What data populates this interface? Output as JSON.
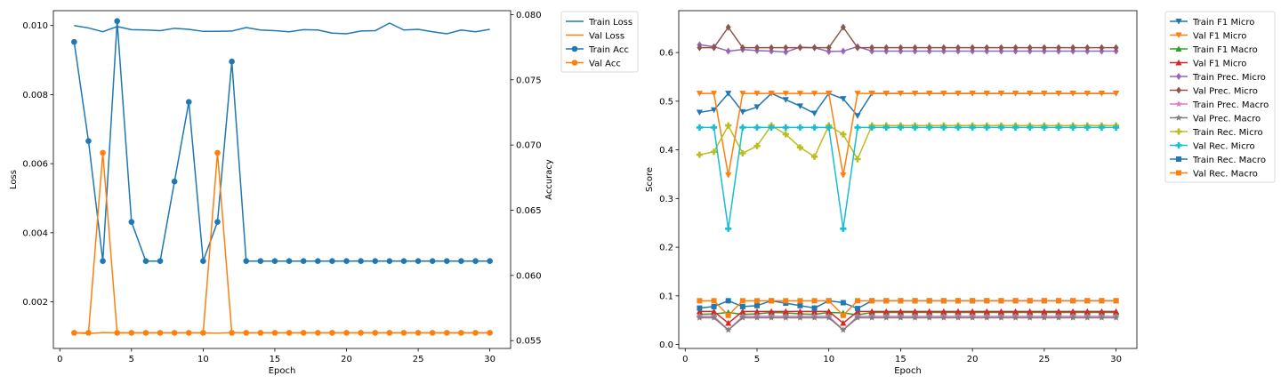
{
  "chart_data": [
    {
      "type": "line",
      "xlabel": "Epoch",
      "ylabel": "Loss",
      "y2label": "Accuracy",
      "xlim": [
        -0.45,
        31.45
      ],
      "ylim": [
        0.00065,
        0.01043
      ],
      "y2lim": [
        0.0544,
        0.0803
      ],
      "xticks": [
        0,
        5,
        10,
        15,
        20,
        25,
        30
      ],
      "yticks": [
        0.002,
        0.004,
        0.006,
        0.008,
        0.01
      ],
      "ytick_labels": [
        "0.002",
        "0.004",
        "0.006",
        "0.008",
        "0.010"
      ],
      "y2ticks": [
        0.055,
        0.06,
        0.065,
        0.07,
        0.075,
        0.08
      ],
      "y2tick_labels": [
        "0.055",
        "0.060",
        "0.065",
        "0.070",
        "0.075",
        "0.080"
      ],
      "legend_position": "outside top-right",
      "x": [
        1,
        2,
        3,
        4,
        5,
        6,
        7,
        8,
        9,
        10,
        11,
        12,
        13,
        14,
        15,
        16,
        17,
        18,
        19,
        20,
        21,
        22,
        23,
        24,
        25,
        26,
        27,
        28,
        29,
        30
      ],
      "series": [
        {
          "name": "Train Loss",
          "axis": "left",
          "color": "#1f77b4",
          "marker": "none",
          "values": [
            0.01,
            0.00993,
            0.00982,
            0.00997,
            0.00988,
            0.00987,
            0.00985,
            0.00992,
            0.00989,
            0.00983,
            0.00983,
            0.00984,
            0.00994,
            0.00987,
            0.00985,
            0.00982,
            0.00988,
            0.00987,
            0.00978,
            0.00976,
            0.00984,
            0.00985,
            0.01007,
            0.00987,
            0.00989,
            0.00982,
            0.00976,
            0.00987,
            0.00982,
            0.00989
          ]
        },
        {
          "name": "Val Loss",
          "axis": "left",
          "color": "#ff7f0e",
          "marker": "none",
          "values": [
            0.0011,
            0.00108,
            0.00111,
            0.0011,
            0.0011,
            0.0011,
            0.0011,
            0.0011,
            0.0011,
            0.0011,
            0.00109,
            0.00111,
            0.0011,
            0.0011,
            0.0011,
            0.0011,
            0.0011,
            0.0011,
            0.0011,
            0.0011,
            0.0011,
            0.0011,
            0.0011,
            0.0011,
            0.0011,
            0.0011,
            0.0011,
            0.0011,
            0.0011,
            0.0011
          ]
        },
        {
          "name": "Train Acc",
          "axis": "right",
          "color": "#1f77b4",
          "marker": "circle",
          "values": [
            0.0779,
            0.0703,
            0.0611,
            0.0795,
            0.0641,
            0.0611,
            0.0611,
            0.0672,
            0.0733,
            0.0611,
            0.0641,
            0.0764,
            0.0611,
            0.0611,
            0.0611,
            0.0611,
            0.0611,
            0.0611,
            0.0611,
            0.0611,
            0.0611,
            0.0611,
            0.0611,
            0.0611,
            0.0611,
            0.0611,
            0.0611,
            0.0611,
            0.0611,
            0.0611
          ]
        },
        {
          "name": "Val Acc",
          "axis": "right",
          "color": "#ff7f0e",
          "marker": "circle",
          "values": [
            0.0556,
            0.0556,
            0.0694,
            0.0556,
            0.0556,
            0.0556,
            0.0556,
            0.0556,
            0.0556,
            0.0556,
            0.0694,
            0.0556,
            0.0556,
            0.0556,
            0.0556,
            0.0556,
            0.0556,
            0.0556,
            0.0556,
            0.0556,
            0.0556,
            0.0556,
            0.0556,
            0.0556,
            0.0556,
            0.0556,
            0.0556,
            0.0556,
            0.0556,
            0.0556
          ]
        }
      ]
    },
    {
      "type": "line",
      "xlabel": "Epoch",
      "ylabel": "Score",
      "xlim": [
        -0.45,
        31.45
      ],
      "ylim": [
        -0.008,
        0.686
      ],
      "xticks": [
        0,
        5,
        10,
        15,
        20,
        25,
        30
      ],
      "yticks": [
        0.0,
        0.1,
        0.2,
        0.3,
        0.4,
        0.5,
        0.6
      ],
      "ytick_labels": [
        "0.0",
        "0.1",
        "0.2",
        "0.3",
        "0.4",
        "0.5",
        "0.6"
      ],
      "legend_position": "outside top-right",
      "x": [
        1,
        2,
        3,
        4,
        5,
        6,
        7,
        8,
        9,
        10,
        11,
        12,
        13,
        14,
        15,
        16,
        17,
        18,
        19,
        20,
        21,
        22,
        23,
        24,
        25,
        26,
        27,
        28,
        29,
        30
      ],
      "series": [
        {
          "name": "Train F1 Micro",
          "color": "#1f77b4",
          "marker": "tri-down",
          "values": [
            0.477,
            0.482,
            0.516,
            0.478,
            0.488,
            0.516,
            0.503,
            0.49,
            0.475,
            0.516,
            0.505,
            0.47,
            0.516,
            0.516,
            0.516,
            0.516,
            0.516,
            0.516,
            0.516,
            0.516,
            0.516,
            0.516,
            0.516,
            0.516,
            0.516,
            0.516,
            0.516,
            0.516,
            0.516,
            0.516
          ]
        },
        {
          "name": "Val F1 Micro",
          "color": "#ff7f0e",
          "marker": "tri-down",
          "values": [
            0.516,
            0.516,
            0.348,
            0.516,
            0.516,
            0.516,
            0.516,
            0.516,
            0.516,
            0.516,
            0.348,
            0.516,
            0.516,
            0.516,
            0.516,
            0.516,
            0.516,
            0.516,
            0.516,
            0.516,
            0.516,
            0.516,
            0.516,
            0.516,
            0.516,
            0.516,
            0.516,
            0.516,
            0.516,
            0.516
          ]
        },
        {
          "name": "Train F1 Macro",
          "color": "#2ca02c",
          "marker": "tri-up",
          "values": [
            0.062,
            0.063,
            0.066,
            0.062,
            0.063,
            0.066,
            0.065,
            0.063,
            0.062,
            0.066,
            0.065,
            0.061,
            0.066,
            0.066,
            0.066,
            0.066,
            0.066,
            0.066,
            0.066,
            0.066,
            0.066,
            0.066,
            0.066,
            0.066,
            0.066,
            0.066,
            0.066,
            0.066,
            0.066,
            0.066
          ]
        },
        {
          "name": "Val F1 Micro",
          "color": "#d62728",
          "marker": "tri-up",
          "values": [
            0.068,
            0.068,
            0.044,
            0.068,
            0.068,
            0.068,
            0.068,
            0.068,
            0.068,
            0.068,
            0.044,
            0.068,
            0.068,
            0.068,
            0.068,
            0.068,
            0.068,
            0.068,
            0.068,
            0.068,
            0.068,
            0.068,
            0.068,
            0.068,
            0.068,
            0.068,
            0.068,
            0.068,
            0.068,
            0.068
          ]
        },
        {
          "name": "Train Prec. Micro",
          "color": "#9467bd",
          "marker": "diamond",
          "values": [
            0.616,
            0.612,
            0.603,
            0.606,
            0.604,
            0.603,
            0.601,
            0.611,
            0.61,
            0.602,
            0.603,
            0.612,
            0.603,
            0.603,
            0.603,
            0.603,
            0.603,
            0.603,
            0.603,
            0.603,
            0.603,
            0.603,
            0.603,
            0.603,
            0.603,
            0.603,
            0.603,
            0.603,
            0.603,
            0.603
          ]
        },
        {
          "name": "Val Prec. Micro",
          "color": "#8c564b",
          "marker": "diamond",
          "values": [
            0.61,
            0.61,
            0.652,
            0.61,
            0.61,
            0.61,
            0.61,
            0.61,
            0.61,
            0.61,
            0.652,
            0.61,
            0.61,
            0.61,
            0.61,
            0.61,
            0.61,
            0.61,
            0.61,
            0.61,
            0.61,
            0.61,
            0.61,
            0.61,
            0.61,
            0.61,
            0.61,
            0.61,
            0.61,
            0.61
          ]
        },
        {
          "name": "Train Prec. Macro",
          "color": "#e377c2",
          "marker": "star",
          "values": [
            0.058,
            0.058,
            0.03,
            0.058,
            0.058,
            0.058,
            0.058,
            0.058,
            0.058,
            0.058,
            0.03,
            0.058,
            0.058,
            0.058,
            0.058,
            0.058,
            0.058,
            0.058,
            0.058,
            0.058,
            0.058,
            0.058,
            0.058,
            0.058,
            0.058,
            0.058,
            0.058,
            0.058,
            0.058,
            0.058
          ]
        },
        {
          "name": "Val Prec. Macro",
          "color": "#7f7f7f",
          "marker": "star",
          "values": [
            0.055,
            0.055,
            0.03,
            0.055,
            0.055,
            0.055,
            0.055,
            0.055,
            0.055,
            0.055,
            0.03,
            0.055,
            0.055,
            0.055,
            0.055,
            0.055,
            0.055,
            0.055,
            0.055,
            0.055,
            0.055,
            0.055,
            0.055,
            0.055,
            0.055,
            0.055,
            0.055,
            0.055,
            0.055,
            0.055
          ]
        },
        {
          "name": "Train Rec. Micro",
          "color": "#bcbd22",
          "marker": "plus",
          "values": [
            0.39,
            0.396,
            0.45,
            0.393,
            0.408,
            0.45,
            0.432,
            0.405,
            0.386,
            0.45,
            0.432,
            0.381,
            0.45,
            0.45,
            0.45,
            0.45,
            0.45,
            0.45,
            0.45,
            0.45,
            0.45,
            0.45,
            0.45,
            0.45,
            0.45,
            0.45,
            0.45,
            0.45,
            0.45,
            0.45
          ]
        },
        {
          "name": "Val Rec. Micro",
          "color": "#17becf",
          "marker": "plus",
          "values": [
            0.446,
            0.446,
            0.238,
            0.446,
            0.446,
            0.446,
            0.446,
            0.446,
            0.446,
            0.446,
            0.238,
            0.446,
            0.446,
            0.446,
            0.446,
            0.446,
            0.446,
            0.446,
            0.446,
            0.446,
            0.446,
            0.446,
            0.446,
            0.446,
            0.446,
            0.446,
            0.446,
            0.446,
            0.446,
            0.446
          ]
        },
        {
          "name": "Train Rec. Macro",
          "color": "#1f77b4",
          "marker": "square",
          "values": [
            0.075,
            0.078,
            0.09,
            0.078,
            0.08,
            0.09,
            0.085,
            0.08,
            0.075,
            0.09,
            0.086,
            0.074,
            0.09,
            0.09,
            0.09,
            0.09,
            0.09,
            0.09,
            0.09,
            0.09,
            0.09,
            0.09,
            0.09,
            0.09,
            0.09,
            0.09,
            0.09,
            0.09,
            0.09,
            0.09
          ]
        },
        {
          "name": "Val Rec. Macro",
          "color": "#ff7f0e",
          "marker": "square",
          "values": [
            0.09,
            0.09,
            0.06,
            0.09,
            0.09,
            0.09,
            0.09,
            0.09,
            0.09,
            0.09,
            0.06,
            0.09,
            0.09,
            0.09,
            0.09,
            0.09,
            0.09,
            0.09,
            0.09,
            0.09,
            0.09,
            0.09,
            0.09,
            0.09,
            0.09,
            0.09,
            0.09,
            0.09,
            0.09,
            0.09
          ]
        }
      ]
    }
  ]
}
